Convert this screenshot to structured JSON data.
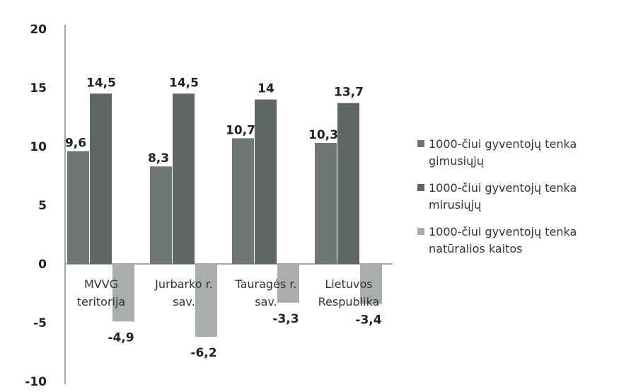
{
  "chart_data": {
    "type": "bar",
    "categories": [
      "MVVG teritorija",
      "Jurbarko r. sav.",
      "Tauragės r. sav.",
      "Lietuvos Respublika"
    ],
    "series": [
      {
        "name": "1000-čiui gyventojų tenka gimusiųjų",
        "values": [
          9.6,
          8.3,
          10.7,
          10.3
        ],
        "labels": [
          "9,6",
          "8,3",
          "10,7",
          "10,3"
        ],
        "color": "#6f7772"
      },
      {
        "name": "1000-čiui gyventojų tenka mirusiųjų",
        "values": [
          14.5,
          14.5,
          14.0,
          13.7
        ],
        "labels": [
          "14,5",
          "14,5",
          "14",
          "13,7"
        ],
        "color": "#5f6762"
      },
      {
        "name": "1000-čiui gyventojų tenka natūralios kaitos",
        "values": [
          -4.9,
          -6.2,
          -3.3,
          -3.4
        ],
        "labels": [
          "-4,9",
          "-6,2",
          "-3,3",
          "-3,4"
        ],
        "color": "#a9aeaa"
      }
    ],
    "ylim": [
      -10,
      20
    ],
    "yticks": [
      20,
      15,
      10,
      5,
      0,
      -5,
      -10
    ],
    "title": "",
    "xlabel": "",
    "ylabel": "",
    "grid": false,
    "legend_position": "right"
  }
}
